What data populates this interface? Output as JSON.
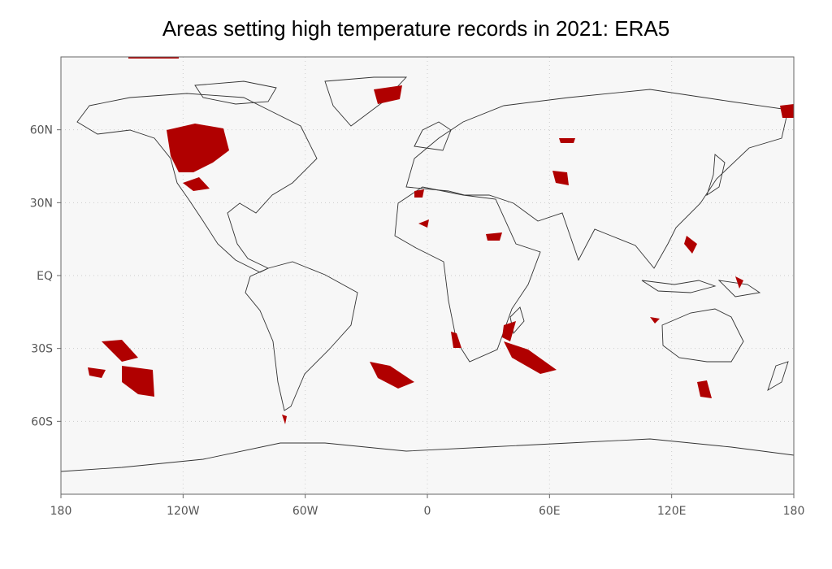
{
  "map": {
    "title": "Areas setting high temperature records in 2021: ERA5",
    "lon_range": [
      -180,
      180
    ],
    "lat_range": [
      -90,
      90
    ],
    "lon_ticks": [
      {
        "value": -180,
        "label": "180"
      },
      {
        "value": -120,
        "label": "120W"
      },
      {
        "value": -60,
        "label": "60W"
      },
      {
        "value": 0,
        "label": "0"
      },
      {
        "value": 60,
        "label": "60E"
      },
      {
        "value": 120,
        "label": "120E"
      },
      {
        "value": 180,
        "label": "180"
      }
    ],
    "lat_ticks": [
      {
        "value": 60,
        "label": "60N"
      },
      {
        "value": 30,
        "label": "30N"
      },
      {
        "value": 0,
        "label": "EQ"
      },
      {
        "value": -30,
        "label": "30S"
      },
      {
        "value": -60,
        "label": "60S"
      }
    ]
  }
}
